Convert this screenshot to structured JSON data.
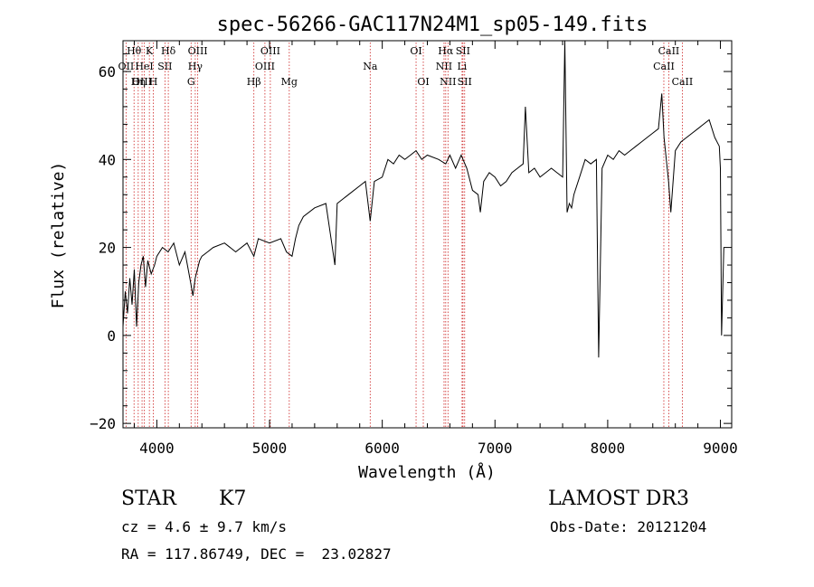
{
  "chart_data": {
    "type": "line",
    "title": "spec-56266-GAC117N24M1_sp05-149.fits",
    "xlabel": "Wavelength (Å)",
    "ylabel": "Flux (relative)",
    "xlim": [
      3700,
      9100
    ],
    "ylim": [
      -21,
      67
    ],
    "xticks": [
      4000,
      5000,
      6000,
      7000,
      8000,
      9000
    ],
    "xtick_labels": [
      "4000",
      "5000",
      "6000",
      "7000",
      "8000",
      "9000"
    ],
    "yticks": [
      -20,
      0,
      20,
      40,
      60
    ],
    "ytick_labels": [
      "−20",
      "0",
      "20",
      "40",
      "60"
    ],
    "series": [
      {
        "name": "spectrum",
        "x": [
          3700,
          3720,
          3740,
          3760,
          3780,
          3800,
          3820,
          3840,
          3860,
          3880,
          3900,
          3920,
          3950,
          3980,
          4000,
          4050,
          4100,
          4150,
          4200,
          4250,
          4300,
          4320,
          4340,
          4380,
          4400,
          4450,
          4500,
          4600,
          4700,
          4800,
          4861,
          4900,
          5000,
          5100,
          5150,
          5200,
          5230,
          5260,
          5300,
          5400,
          5500,
          5580,
          5600,
          5700,
          5800,
          5850,
          5893,
          5930,
          6000,
          6050,
          6100,
          6150,
          6200,
          6250,
          6300,
          6350,
          6400,
          6500,
          6563,
          6600,
          6650,
          6700,
          6750,
          6800,
          6850,
          6870,
          6900,
          6950,
          7000,
          7050,
          7100,
          7150,
          7200,
          7250,
          7270,
          7300,
          7350,
          7400,
          7450,
          7500,
          7550,
          7600,
          7620,
          7640,
          7660,
          7680,
          7700,
          7750,
          7800,
          7850,
          7900,
          7920,
          7950,
          8000,
          8050,
          8100,
          8150,
          8200,
          8250,
          8300,
          8350,
          8400,
          8450,
          8480,
          8500,
          8540,
          8560,
          8600,
          8650,
          8700,
          8750,
          8800,
          8850,
          8900,
          8950,
          8990,
          9000,
          9010,
          9030
        ],
        "y": [
          2,
          10,
          5,
          13,
          7,
          15,
          2,
          12,
          16,
          18,
          11,
          17,
          14,
          16,
          18,
          20,
          19,
          21,
          16,
          19,
          12,
          9,
          13,
          17,
          18,
          19,
          20,
          21,
          19,
          21,
          18,
          22,
          21,
          22,
          19,
          18,
          22,
          25,
          27,
          29,
          30,
          16,
          30,
          32,
          34,
          35,
          26,
          35,
          36,
          40,
          39,
          41,
          40,
          41,
          42,
          40,
          41,
          40,
          39,
          41,
          38,
          41,
          38,
          33,
          32,
          28,
          35,
          37,
          36,
          34,
          35,
          37,
          38,
          39,
          52,
          37,
          38,
          36,
          37,
          38,
          37,
          36,
          67,
          28,
          30,
          29,
          32,
          36,
          40,
          39,
          40,
          -5,
          38,
          41,
          40,
          42,
          41,
          42,
          43,
          44,
          45,
          46,
          47,
          55,
          45,
          35,
          28,
          42,
          44,
          45,
          46,
          47,
          48,
          49,
          45,
          43,
          38,
          0,
          20
        ]
      }
    ],
    "lines": [
      {
        "label": "Hθ",
        "wavelength": 3798,
        "row": 0
      },
      {
        "label": "OII",
        "wavelength": 3727,
        "row": 1
      },
      {
        "label": "OIII",
        "wavelength": 3869,
        "row": 2
      },
      {
        "label": "Hη",
        "wavelength": 3835,
        "row": 2
      },
      {
        "label": "HeI",
        "wavelength": 3889,
        "row": 1
      },
      {
        "label": "K",
        "wavelength": 3934,
        "row": 0
      },
      {
        "label": "SII",
        "wavelength": 4072,
        "row": 1
      },
      {
        "label": "H",
        "wavelength": 3969,
        "row": 2
      },
      {
        "label": "Hδ",
        "wavelength": 4102,
        "row": 0
      },
      {
        "label": "OIII",
        "wavelength": 4363,
        "row": 0
      },
      {
        "label": "Hγ",
        "wavelength": 4341,
        "row": 1
      },
      {
        "label": "G",
        "wavelength": 4304,
        "row": 2
      },
      {
        "label": "OIII",
        "wavelength": 5007,
        "row": 0
      },
      {
        "label": "OIII",
        "wavelength": 4959,
        "row": 1
      },
      {
        "label": "Hβ",
        "wavelength": 4861,
        "row": 2
      },
      {
        "label": "Mg",
        "wavelength": 5175,
        "row": 2
      },
      {
        "label": "Na",
        "wavelength": 5893,
        "row": 1
      },
      {
        "label": "OI",
        "wavelength": 6300,
        "row": 0
      },
      {
        "label": "OI",
        "wavelength": 6364,
        "row": 2
      },
      {
        "label": "Hα",
        "wavelength": 6563,
        "row": 0
      },
      {
        "label": "SII",
        "wavelength": 6716,
        "row": 0
      },
      {
        "label": "NII",
        "wavelength": 6548,
        "row": 1
      },
      {
        "label": "Li",
        "wavelength": 6708,
        "row": 1
      },
      {
        "label": "NII",
        "wavelength": 6583,
        "row": 2
      },
      {
        "label": "SII",
        "wavelength": 6731,
        "row": 2
      },
      {
        "label": "CaII",
        "wavelength": 8542,
        "row": 0
      },
      {
        "label": "CaII",
        "wavelength": 8498,
        "row": 1
      },
      {
        "label": "CaII",
        "wavelength": 8662,
        "row": 2
      }
    ]
  },
  "info": {
    "class": "STAR",
    "subclass": "K7",
    "survey": "LAMOST DR3",
    "cz": "cz = 4.6 ± 9.7 km/s",
    "obs_date": "Obs-Date: 20121204",
    "radec": "RA = 117.86749, DEC =  23.02827"
  }
}
